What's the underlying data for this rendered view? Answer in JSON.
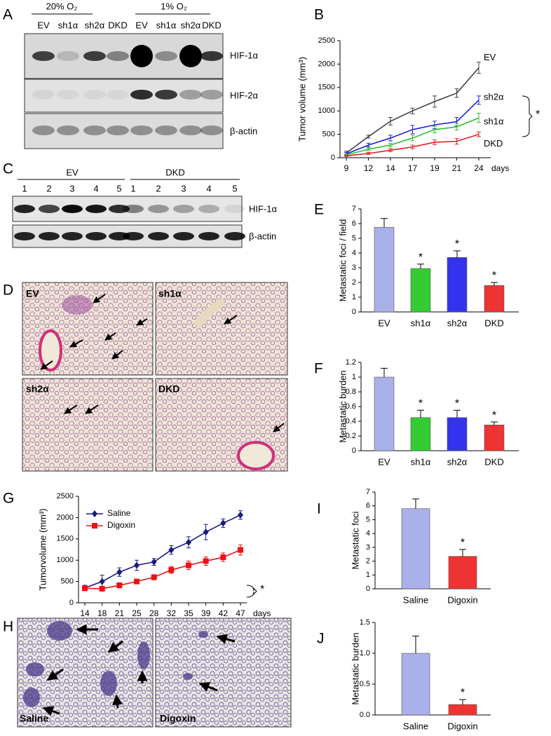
{
  "blot_a": {
    "panel_label": "A",
    "conditions": [
      "20% O₂",
      "1% O₂"
    ],
    "lanes": [
      "EV",
      "sh1α",
      "sh2α",
      "DKD",
      "EV",
      "sh1α",
      "sh2α",
      "DKD"
    ],
    "rows": [
      "HIF-1α",
      "HIF-2α",
      "β-actin"
    ]
  },
  "blot_c": {
    "panel_label": "C",
    "groups": [
      "EV",
      "DKD"
    ],
    "lanes": [
      "1",
      "2",
      "3",
      "4",
      "5",
      "1",
      "2",
      "3",
      "4",
      "5"
    ],
    "rows": [
      "HIF-1α",
      "β-actin"
    ]
  },
  "histology_d": {
    "panel_label": "D",
    "panels": [
      "EV",
      "sh1α",
      "sh2α",
      "DKD"
    ]
  },
  "histology_h": {
    "panel_label": "H",
    "panels": [
      "Saline",
      "Digoxin"
    ]
  },
  "chart_data": [
    {
      "type": "line",
      "panel_label": "B",
      "ylabel": "Tumor volume (mm³)",
      "xlabel": "days",
      "categories": [
        "9",
        "12",
        "14",
        "17",
        "19",
        "21",
        "24"
      ],
      "ylim": [
        0,
        2500
      ],
      "yticks": [
        0,
        500,
        1000,
        1500,
        2000,
        2500
      ],
      "grid": false,
      "legend": "line-end",
      "annotation": "*",
      "series": [
        {
          "name": "EV",
          "color": "#404040",
          "values": [
            100,
            450,
            780,
            1000,
            1200,
            1380,
            1920
          ],
          "errors": [
            40,
            30,
            80,
            60,
            120,
            90,
            120
          ]
        },
        {
          "name": "sh2α",
          "color": "#2020e0",
          "values": [
            80,
            270,
            420,
            600,
            700,
            770,
            1230
          ],
          "errors": [
            30,
            40,
            60,
            90,
            80,
            90,
            90
          ]
        },
        {
          "name": "sh1α",
          "color": "#30c030",
          "values": [
            60,
            180,
            270,
            420,
            600,
            660,
            850
          ],
          "errors": [
            20,
            30,
            40,
            60,
            70,
            70,
            100
          ]
        },
        {
          "name": "DKD",
          "color": "#e02020",
          "values": [
            40,
            90,
            160,
            230,
            330,
            350,
            500
          ],
          "errors": [
            15,
            20,
            30,
            40,
            50,
            60,
            50
          ]
        }
      ]
    },
    {
      "type": "bar",
      "panel_label": "E",
      "ylabel": "Metastatic foci / field",
      "categories": [
        "EV",
        "sh1α",
        "sh2α",
        "DKD"
      ],
      "values": [
        5.75,
        2.95,
        3.7,
        1.8
      ],
      "errors": [
        0.6,
        0.3,
        0.45,
        0.2
      ],
      "colors": [
        "#aab0ea",
        "#33cc33",
        "#3333ee",
        "#ee3333"
      ],
      "significance": [
        null,
        "*",
        "*",
        "*"
      ],
      "ylim": [
        0,
        7
      ],
      "yticks": [
        0,
        1,
        2,
        3,
        4,
        5,
        6,
        7
      ],
      "grid": false
    },
    {
      "type": "bar",
      "panel_label": "F",
      "ylabel": "Metastatic burden",
      "categories": [
        "EV",
        "sh1α",
        "sh2α",
        "DKD"
      ],
      "values": [
        1,
        0.45,
        0.45,
        0.35
      ],
      "errors": [
        0.12,
        0.1,
        0.1,
        0.04
      ],
      "colors": [
        "#aab0ea",
        "#33cc33",
        "#3333ee",
        "#ee3333"
      ],
      "significance": [
        null,
        "*",
        "*",
        "*"
      ],
      "ylim": [
        0,
        1.2
      ],
      "yticks": [
        0,
        0.2,
        0.4,
        0.6,
        0.8,
        1,
        1.2
      ],
      "grid": false
    },
    {
      "type": "line",
      "panel_label": "G",
      "ylabel": "Tumorvolume (mm³)",
      "xlabel": "days",
      "categories": [
        "14",
        "18",
        "21",
        "25",
        "28",
        "32",
        "35",
        "39",
        "42",
        "47"
      ],
      "ylim": [
        0,
        2500
      ],
      "yticks": [
        0,
        500,
        1000,
        1500,
        2000,
        2500
      ],
      "grid": false,
      "legend": "upper-left",
      "annotation": "*",
      "series": [
        {
          "name": "Saline",
          "color": "#1a1a80",
          "marker": "diamond",
          "values": [
            350,
            500,
            720,
            880,
            960,
            1240,
            1420,
            1660,
            1870,
            2060
          ],
          "errors": [
            60,
            150,
            100,
            120,
            80,
            100,
            130,
            180,
            100,
            100
          ]
        },
        {
          "name": "Digoxin",
          "color": "#ee1111",
          "marker": "square",
          "values": [
            340,
            330,
            410,
            500,
            600,
            770,
            880,
            980,
            1070,
            1240
          ],
          "errors": [
            40,
            30,
            60,
            50,
            60,
            80,
            100,
            100,
            100,
            120
          ]
        }
      ]
    },
    {
      "type": "bar",
      "panel_label": "I",
      "ylabel": "Metastatic foci",
      "categories": [
        "Saline",
        "Digoxin"
      ],
      "values": [
        5.8,
        2.35
      ],
      "errors": [
        0.7,
        0.5
      ],
      "colors": [
        "#aab0ea",
        "#ee3333"
      ],
      "significance": [
        null,
        "*"
      ],
      "ylim": [
        0,
        7
      ],
      "yticks": [
        0,
        1,
        2,
        3,
        4,
        5,
        6,
        7
      ],
      "grid": false
    },
    {
      "type": "bar",
      "panel_label": "J",
      "ylabel": "Metastatic burden",
      "categories": [
        "Saline",
        "Digoxin"
      ],
      "values": [
        1,
        0.17
      ],
      "errors": [
        0.28,
        0.08
      ],
      "colors": [
        "#aab0ea",
        "#ee3333"
      ],
      "significance": [
        null,
        "*"
      ],
      "ylim": [
        0,
        1.5
      ],
      "yticks": [
        {
          "value": 0,
          "label": "0.0"
        },
        {
          "value": 0.5,
          "label": "0.5"
        },
        {
          "value": 1,
          "label": "1.0"
        },
        {
          "value": 1.5,
          "label": "1.5"
        }
      ],
      "grid": false
    }
  ]
}
